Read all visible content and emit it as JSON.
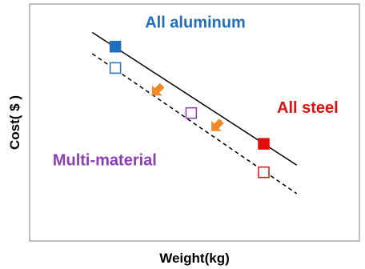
{
  "chart_data": {
    "type": "scatter",
    "xlabel": "Weight(kg)",
    "ylabel": "Cost( $ )",
    "xlim": [
      0,
      10
    ],
    "ylim": [
      0,
      10
    ],
    "grid": false,
    "lines": [
      {
        "style": "solid",
        "color": "#000000",
        "from": [
          1.9,
          8.8
        ],
        "to": [
          8.1,
          3.2
        ]
      },
      {
        "style": "dashed",
        "color": "#000000",
        "from": [
          1.9,
          7.9
        ],
        "to": [
          8.1,
          2.0
        ]
      }
    ],
    "points": [
      {
        "x": 2.6,
        "y": 8.2,
        "fill": "#1f6fbf",
        "stroke": "#1f6fbf",
        "filled": true
      },
      {
        "x": 2.6,
        "y": 7.3,
        "fill": "none",
        "stroke": "#1f6fbf",
        "filled": false
      },
      {
        "x": 4.9,
        "y": 5.4,
        "fill": "none",
        "stroke": "#8a3fb5",
        "filled": false
      },
      {
        "x": 7.1,
        "y": 4.1,
        "fill": "#e01010",
        "stroke": "#e01010",
        "filled": true
      },
      {
        "x": 7.1,
        "y": 2.9,
        "fill": "none",
        "stroke": "#e01010",
        "filled": false
      }
    ],
    "arrows": [
      {
        "x": 3.9,
        "y": 6.4,
        "color": "#f08a24"
      },
      {
        "x": 5.7,
        "y": 4.9,
        "color": "#f08a24"
      }
    ],
    "annotations": [
      {
        "text": "All aluminum",
        "x": 3.5,
        "y": 9.0,
        "color": "#1f6fbf"
      },
      {
        "text": "All steel",
        "x": 7.5,
        "y": 5.4,
        "color": "#e01010"
      },
      {
        "text": "Multi-material",
        "x": 0.7,
        "y": 3.2,
        "color": "#8a3fb5"
      }
    ]
  }
}
